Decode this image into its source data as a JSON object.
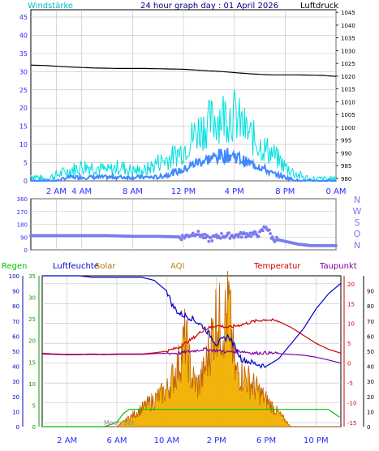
{
  "header": {
    "left_label": "Windstärke",
    "title": "24 hour graph day : 01 April 2026",
    "right_label": "Luftdruck"
  },
  "colors": {
    "background": "#ffffff",
    "header_bg": "#ffffff",
    "title_text": "#000080",
    "wind_label": "#00bfbf",
    "gust": "#00e0e0",
    "wind_avg": "#3f88ff",
    "pressure": "#000000",
    "direction": "#7b7bf0",
    "grid": "#c0c0c0",
    "axis_text": "#2a2aff",
    "bottom_bg": "#ffffff",
    "rain": "#00c000",
    "humidity": "#0000d0",
    "solar": "#f0b000",
    "solar_dark": "#c06000",
    "aqi": "#b8860b",
    "temperature": "#d00000",
    "dewpoint": "#8000a0",
    "axis_line": "#000000",
    "tick_text": "#000000"
  },
  "chart_data": [
    {
      "type": "line",
      "title": "24 hour graph day : 01 April 2026",
      "x_tick_labels": [
        "2 AM",
        "4 AM",
        "8 AM",
        "12 PM",
        "4 PM",
        "8 PM",
        "0 AM"
      ],
      "x_ticks_hours": [
        2,
        4,
        8,
        12,
        16,
        20,
        24
      ],
      "xlim_hours": [
        0,
        24
      ],
      "left_axis": {
        "label": "Windstärke",
        "ticks": [
          0,
          5,
          10,
          15,
          20,
          25,
          30,
          35,
          40,
          45
        ],
        "ylim": [
          0,
          47
        ]
      },
      "right_axis": {
        "label": "Luftdruck",
        "ticks": [
          980,
          985,
          990,
          995,
          1000,
          1005,
          1010,
          1015,
          1020,
          1025,
          1030,
          1035,
          1040,
          1045
        ],
        "ylim": [
          979,
          1046
        ]
      },
      "grid": true,
      "series": [
        {
          "name": "Luftdruck",
          "axis": "right",
          "x": [
            0,
            1,
            2,
            3,
            4,
            5,
            6,
            7,
            8,
            9,
            10,
            11,
            12,
            13,
            14,
            15,
            16,
            17,
            18,
            19,
            20,
            21,
            22,
            23,
            24
          ],
          "y": [
            1024.3,
            1024.2,
            1023.9,
            1023.6,
            1023.4,
            1023.2,
            1023.1,
            1023.0,
            1023.0,
            1023.0,
            1022.9,
            1022.8,
            1022.7,
            1022.4,
            1022.1,
            1021.8,
            1021.4,
            1021.0,
            1020.7,
            1020.5,
            1020.5,
            1020.5,
            1020.4,
            1020.3,
            1019.9
          ]
        },
        {
          "name": "Böen",
          "axis": "left",
          "x": [
            0,
            1,
            2,
            3,
            4,
            5,
            6,
            7,
            8,
            9,
            10,
            11,
            12,
            13,
            14,
            15,
            16,
            17,
            18,
            19,
            20,
            21,
            22,
            23,
            24
          ],
          "y": [
            1,
            0,
            1,
            2,
            3,
            3,
            2,
            3,
            2,
            2,
            4,
            5,
            7,
            11,
            13,
            15,
            15,
            11,
            8,
            6,
            3,
            1,
            0,
            0,
            0
          ]
        },
        {
          "name": "Wind",
          "axis": "left",
          "x": [
            0,
            1,
            2,
            3,
            4,
            5,
            6,
            7,
            8,
            9,
            10,
            11,
            12,
            13,
            14,
            15,
            16,
            17,
            18,
            19,
            20,
            21,
            22,
            23,
            24
          ],
          "y": [
            0,
            0,
            0,
            1,
            1,
            1,
            1,
            1,
            1,
            1,
            1,
            2,
            3,
            5,
            6,
            7,
            7,
            5,
            4,
            2,
            1,
            0,
            0,
            0,
            0
          ]
        }
      ]
    },
    {
      "type": "scatter",
      "y_ticks": [
        0,
        90,
        180,
        270,
        360
      ],
      "ylim": [
        0,
        360
      ],
      "compass_labels": [
        "N",
        "W",
        "S",
        "O",
        "N"
      ],
      "x": [
        0,
        2,
        4,
        6,
        8,
        10,
        12,
        13,
        14,
        15,
        16,
        17,
        18,
        18.5,
        19,
        20,
        21,
        22,
        23,
        24
      ],
      "y": [
        100,
        100,
        100,
        100,
        95,
        95,
        90,
        120,
        75,
        100,
        100,
        110,
        110,
        170,
        80,
        60,
        40,
        30,
        30,
        30
      ]
    },
    {
      "type": "line",
      "labels": [
        "Regen",
        "Luftfeuchte",
        "Solar",
        "AQI",
        "Temperatur",
        "Taupunkt"
      ],
      "x_tick_labels": [
        "2 AM",
        "6 AM",
        "10 AM",
        "2 PM",
        "6 PM",
        "10 PM"
      ],
      "x_ticks_hours": [
        2,
        6,
        10,
        14,
        18,
        22
      ],
      "xlim_hours": [
        0,
        24
      ],
      "axes": {
        "humidity": {
          "ticks": [
            0,
            10,
            20,
            30,
            40,
            50,
            60,
            70,
            80,
            90,
            100
          ],
          "ylim": [
            0,
            100
          ]
        },
        "rain": {
          "ticks": [
            0,
            5,
            10,
            15,
            20,
            25,
            30,
            35
          ],
          "ylim": [
            0,
            35
          ]
        },
        "temperature": {
          "ticks": [
            -15,
            -10,
            -5,
            0,
            5,
            10,
            15,
            20
          ],
          "ylim": [
            -16,
            22
          ]
        },
        "dewpoint": {
          "ticks": [
            0,
            10,
            20,
            30,
            40,
            50,
            60,
            70,
            80,
            90
          ],
          "ylim": [
            0,
            100
          ]
        }
      },
      "moon_set_label": "Moon Set",
      "moon_set_hour": 6,
      "series": [
        {
          "name": "Luftfeuchte",
          "x": [
            0,
            1,
            2,
            3,
            4,
            5,
            6,
            7,
            8,
            9,
            10,
            10.5,
            11,
            12,
            13,
            14,
            15,
            16,
            17,
            18,
            19,
            20,
            21,
            22,
            23,
            24
          ],
          "y": [
            100,
            100,
            100,
            100,
            99,
            99,
            99,
            99,
            99,
            97,
            90,
            80,
            75,
            72,
            66,
            55,
            60,
            45,
            42,
            40,
            45,
            55,
            65,
            78,
            88,
            95
          ]
        },
        {
          "name": "Temperatur",
          "x": [
            0,
            1,
            2,
            3,
            4,
            5,
            6,
            7,
            8,
            9,
            10,
            11,
            12,
            13,
            14,
            15,
            16,
            17,
            18,
            19,
            20,
            21,
            22,
            23,
            24
          ],
          "y": [
            2.5,
            2.3,
            2.2,
            2.2,
            2.3,
            2.2,
            2.3,
            2.3,
            2.3,
            2.6,
            3.0,
            4.0,
            6.0,
            8.5,
            9.5,
            9.0,
            9.7,
            10.5,
            11.0,
            10.5,
            9.0,
            7.0,
            5.0,
            3.5,
            2.5
          ]
        },
        {
          "name": "Taupunkt",
          "x": [
            0,
            1,
            2,
            3,
            4,
            5,
            6,
            7,
            8,
            9,
            10,
            11,
            12,
            13,
            14,
            15,
            16,
            17,
            18,
            19,
            20,
            21,
            22,
            23,
            24
          ],
          "y": [
            2.3,
            2.2,
            2.1,
            2.1,
            2.2,
            2.1,
            2.2,
            2.2,
            2.2,
            2.4,
            2.5,
            2.5,
            3.0,
            3.5,
            3.2,
            2.8,
            3.0,
            2.5,
            2.6,
            2.4,
            2.2,
            2.0,
            1.5,
            0.8,
            0.0
          ]
        },
        {
          "name": "Solar",
          "x": [
            0,
            6,
            7,
            8,
            9,
            10,
            11,
            11.5,
            12,
            12.5,
            13,
            13.5,
            14,
            14.5,
            15,
            15.5,
            16,
            17,
            18,
            19,
            20,
            24
          ],
          "y": [
            0,
            0,
            2,
            4,
            6,
            8,
            14,
            20,
            11,
            9,
            12,
            18,
            25,
            22,
            27,
            12,
            12,
            9,
            6,
            3,
            0,
            0
          ]
        },
        {
          "name": "Regen",
          "x": [
            0,
            5,
            6,
            6.5,
            7,
            8,
            9,
            10,
            11,
            12,
            13,
            14,
            15,
            16,
            17,
            18,
            19,
            20,
            21,
            22,
            23,
            24
          ],
          "y": [
            0,
            0,
            1,
            3,
            4,
            4,
            4,
            4,
            4,
            4,
            4,
            4,
            4,
            4,
            4,
            4,
            4,
            4,
            4,
            4,
            4,
            2
          ]
        }
      ]
    }
  ]
}
